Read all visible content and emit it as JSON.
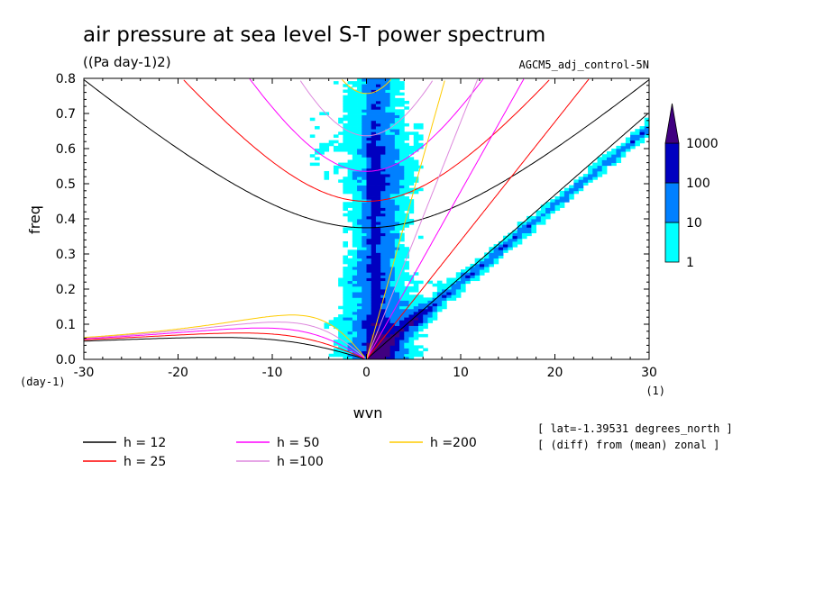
{
  "chart_data": {
    "type": "heatmap",
    "title": "air pressure at sea level S-T power spectrum",
    "subtitle": "((Pa day-1)2)",
    "run_label": "AGCM5_adj_control-5N",
    "xlabel": "wvn",
    "ylabel": "freq",
    "x_unit_label": "(1)",
    "y_unit_label": "(day-1)",
    "xlim": [
      -30,
      30
    ],
    "ylim": [
      0,
      0.8
    ],
    "x_ticks": [
      "-30",
      "-20",
      "-10",
      "0",
      "10",
      "20",
      "30"
    ],
    "y_ticks": [
      "0.0",
      "0.1",
      "0.2",
      "0.3",
      "0.4",
      "0.5",
      "0.6",
      "0.7",
      "0.8"
    ],
    "colorbar": {
      "levels": [
        "1",
        "10",
        "100",
        "1000"
      ],
      "colors": [
        "#00ffff",
        "#0080ff",
        "#0000c0",
        "#400080"
      ]
    },
    "dispersion_curves": [
      {
        "name": "h = 12",
        "color": "#000000",
        "h": 12
      },
      {
        "name": "h = 25",
        "color": "#ff0000",
        "h": 25
      },
      {
        "name": "h = 50",
        "color": "#ff00ff",
        "h": 50
      },
      {
        "name": "h =100",
        "color": "#dd88dd",
        "h": 100
      },
      {
        "name": "h =200",
        "color": "#ffcc00",
        "h": 200
      }
    ],
    "annotations": [
      "[ lat=-1.39531 degrees_north ]",
      "[ (diff) from (mean) zonal ]"
    ]
  }
}
